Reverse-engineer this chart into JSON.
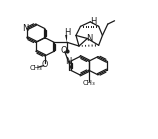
{
  "background": "#ffffff",
  "line_color": "#1a1a1a",
  "lw": 0.9,
  "figsize": [
    1.58,
    1.39
  ],
  "dpi": 100,
  "xlim": [
    0,
    10
  ],
  "ylim": [
    0,
    9
  ]
}
